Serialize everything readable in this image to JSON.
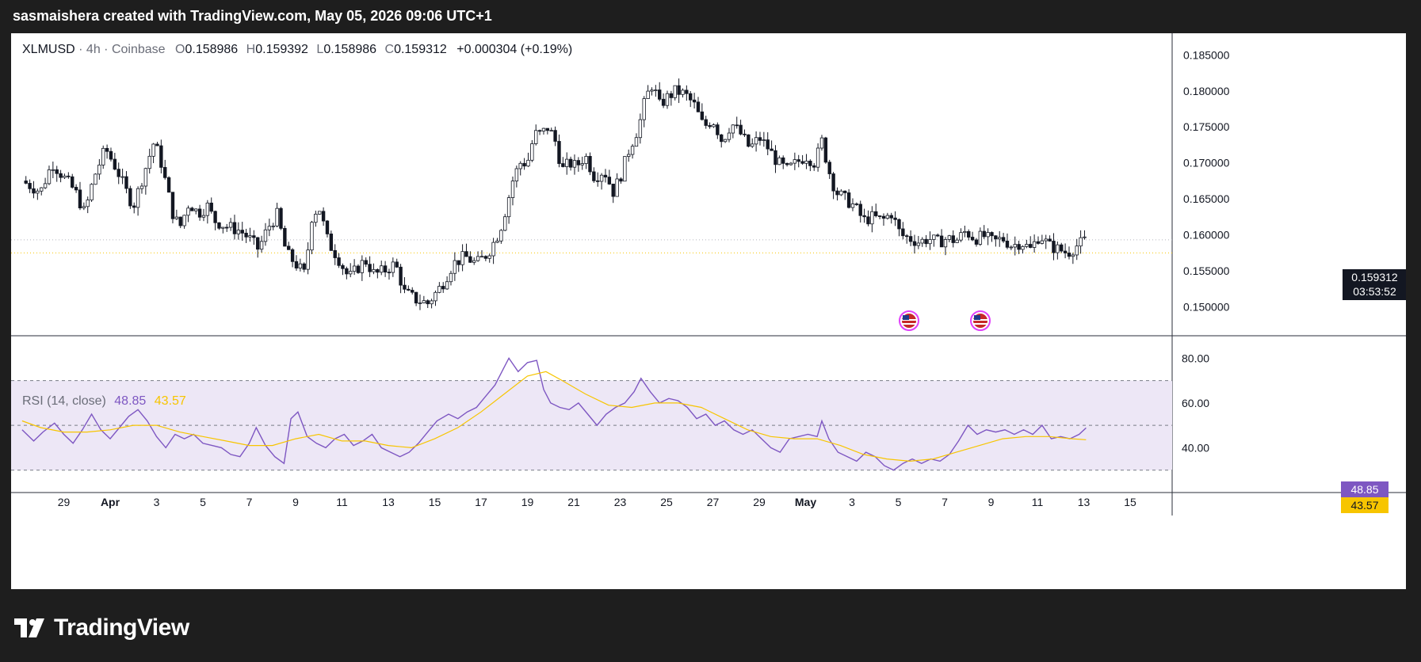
{
  "header": {
    "attribution": "sasmaishera created with TradingView.com, May 05, 2026 09:06 UTC+1"
  },
  "legend": {
    "symbol": "XLMUSD",
    "interval": "4h",
    "exchange": "Coinbase",
    "o_label": "O",
    "o": "0.158986",
    "h_label": "H",
    "h": "0.159392",
    "l_label": "L",
    "l": "0.158986",
    "c_label": "C",
    "c": "0.159312",
    "change": "+0.000304 (+0.19%)"
  },
  "price_tag": {
    "price": "0.159312",
    "countdown": "03:53:52"
  },
  "rsi_legend": {
    "label": "RSI (14, close)",
    "rsi": "48.85",
    "ma": "43.57"
  },
  "brand": {
    "name": "TradingView"
  },
  "colors": {
    "up": "#131722",
    "down": "#131722",
    "rsi": "#7e57c2",
    "rsi_ma": "#f7c500",
    "band": "#ede7f6"
  },
  "chart_data": [
    {
      "type": "candlestick",
      "ylim": [
        0.146,
        0.188
      ],
      "y_ticks": [
        "0.185000",
        "0.180000",
        "0.175000",
        "0.170000",
        "0.165000",
        "0.160000",
        "0.155000",
        "0.150000"
      ],
      "y_tick_values": [
        0.185,
        0.18,
        0.175,
        0.17,
        0.165,
        0.16,
        0.155,
        0.15
      ],
      "x_tick_labels": [
        "29",
        "Apr",
        "3",
        "5",
        "7",
        "9",
        "11",
        "13",
        "15",
        "17",
        "19",
        "21",
        "23",
        "25",
        "27",
        "29",
        "May",
        "3",
        "5",
        "7",
        "9",
        "11",
        "13",
        "15"
      ],
      "x_tick_days": [
        -2,
        0,
        2,
        4,
        6,
        8,
        10,
        12,
        14,
        16,
        18,
        20,
        22,
        24,
        26,
        28,
        30,
        32,
        34,
        36,
        38,
        40,
        42,
        44
      ],
      "last_price": 0.159312,
      "close_path": [
        [
          -3.8,
          0.1675
        ],
        [
          -3.0,
          0.166
        ],
        [
          -2.5,
          0.17
        ],
        [
          -2.0,
          0.168
        ],
        [
          -1.5,
          0.166
        ],
        [
          -1.1,
          0.163
        ],
        [
          -0.7,
          0.168
        ],
        [
          -0.2,
          0.172
        ],
        [
          0.3,
          0.169
        ],
        [
          0.7,
          0.166
        ],
        [
          1.0,
          0.164
        ],
        [
          1.5,
          0.169
        ],
        [
          1.9,
          0.173
        ],
        [
          2.2,
          0.17
        ],
        [
          2.7,
          0.163
        ],
        [
          3.0,
          0.161
        ],
        [
          3.4,
          0.1645
        ],
        [
          3.8,
          0.163
        ],
        [
          4.2,
          0.164
        ],
        [
          4.5,
          0.162
        ],
        [
          5.0,
          0.1612
        ],
        [
          5.6,
          0.1606
        ],
        [
          6.0,
          0.1595
        ],
        [
          6.4,
          0.158
        ],
        [
          6.8,
          0.161
        ],
        [
          7.2,
          0.1628
        ],
        [
          7.6,
          0.1575
        ],
        [
          8.0,
          0.156
        ],
        [
          8.4,
          0.1545
        ],
        [
          8.7,
          0.1625
        ],
        [
          9.0,
          0.164
        ],
        [
          9.4,
          0.159
        ],
        [
          9.8,
          0.157
        ],
        [
          10.3,
          0.154
        ],
        [
          10.7,
          0.1555
        ],
        [
          11.0,
          0.1565
        ],
        [
          11.4,
          0.1545
        ],
        [
          11.8,
          0.155
        ],
        [
          12.3,
          0.156
        ],
        [
          12.7,
          0.152
        ],
        [
          13.2,
          0.151
        ],
        [
          13.7,
          0.1505
        ],
        [
          14.3,
          0.153
        ],
        [
          14.8,
          0.156
        ],
        [
          15.3,
          0.157
        ],
        [
          15.8,
          0.156
        ],
        [
          16.3,
          0.1575
        ],
        [
          16.8,
          0.1605
        ],
        [
          17.1,
          0.164
        ],
        [
          17.4,
          0.168
        ],
        [
          17.7,
          0.17
        ],
        [
          18.0,
          0.17
        ],
        [
          18.3,
          0.174
        ],
        [
          18.6,
          0.174
        ],
        [
          18.9,
          0.175
        ],
        [
          19.2,
          0.173
        ],
        [
          19.5,
          0.169
        ],
        [
          19.8,
          0.17
        ],
        [
          20.1,
          0.1695
        ],
        [
          20.5,
          0.171
        ],
        [
          20.9,
          0.168
        ],
        [
          21.3,
          0.169
        ],
        [
          21.7,
          0.166
        ],
        [
          22.0,
          0.168
        ],
        [
          22.4,
          0.172
        ],
        [
          22.8,
          0.175
        ],
        [
          23.1,
          0.179
        ],
        [
          23.4,
          0.181
        ],
        [
          23.7,
          0.178
        ],
        [
          24.0,
          0.179
        ],
        [
          24.4,
          0.18
        ],
        [
          24.8,
          0.1795
        ],
        [
          25.2,
          0.178
        ],
        [
          25.6,
          0.175
        ],
        [
          26.0,
          0.176
        ],
        [
          26.4,
          0.173
        ],
        [
          26.8,
          0.1755
        ],
        [
          27.2,
          0.174
        ],
        [
          27.6,
          0.172
        ],
        [
          28.0,
          0.1735
        ],
        [
          28.4,
          0.172
        ],
        [
          28.8,
          0.17
        ],
        [
          29.2,
          0.169
        ],
        [
          29.6,
          0.17
        ],
        [
          30.0,
          0.171
        ],
        [
          30.4,
          0.17
        ],
        [
          30.7,
          0.173
        ],
        [
          31.0,
          0.169
        ],
        [
          31.3,
          0.166
        ],
        [
          31.7,
          0.165
        ],
        [
          32.1,
          0.164
        ],
        [
          32.5,
          0.162
        ],
        [
          32.9,
          0.1625
        ],
        [
          33.3,
          0.162
        ],
        [
          33.7,
          0.163
        ],
        [
          34.1,
          0.16
        ],
        [
          34.5,
          0.1595
        ],
        [
          34.9,
          0.159
        ],
        [
          35.3,
          0.1595
        ],
        [
          35.7,
          0.159
        ],
        [
          36.1,
          0.1595
        ],
        [
          36.5,
          0.1592
        ],
        [
          36.9,
          0.1605
        ],
        [
          37.3,
          0.1595
        ],
        [
          37.7,
          0.1598
        ],
        [
          38.1,
          0.159
        ],
        [
          38.5,
          0.1595
        ],
        [
          38.9,
          0.1585
        ],
        [
          39.3,
          0.159
        ],
        [
          39.7,
          0.158
        ],
        [
          40.1,
          0.16
        ],
        [
          40.5,
          0.1585
        ],
        [
          40.9,
          0.158
        ],
        [
          41.3,
          0.1575
        ],
        [
          41.7,
          0.1585
        ],
        [
          42.1,
          0.1593
        ]
      ]
    },
    {
      "type": "line",
      "title": "RSI (14, close)",
      "ylim": [
        20,
        90
      ],
      "y_ticks": [
        "80.00",
        "60.00",
        "40.00"
      ],
      "y_tick_values": [
        80,
        60,
        40
      ],
      "bands": [
        70,
        50,
        30
      ],
      "series": [
        {
          "name": "RSI",
          "color": "#7e57c2",
          "current": 48.85,
          "values": [
            [
              -3.8,
              48
            ],
            [
              -3.3,
              43
            ],
            [
              -2.9,
              47
            ],
            [
              -2.4,
              51
            ],
            [
              -2.0,
              46
            ],
            [
              -1.6,
              42
            ],
            [
              -1.2,
              48
            ],
            [
              -0.8,
              55
            ],
            [
              -0.4,
              48
            ],
            [
              0.0,
              44
            ],
            [
              0.4,
              49
            ],
            [
              0.8,
              54
            ],
            [
              1.2,
              57
            ],
            [
              1.6,
              52
            ],
            [
              2.0,
              45
            ],
            [
              2.4,
              40
            ],
            [
              2.8,
              46
            ],
            [
              3.2,
              44
            ],
            [
              3.6,
              46
            ],
            [
              4.0,
              42
            ],
            [
              4.4,
              41
            ],
            [
              4.8,
              40
            ],
            [
              5.2,
              37
            ],
            [
              5.6,
              36
            ],
            [
              6.0,
              42
            ],
            [
              6.3,
              49
            ],
            [
              6.7,
              41
            ],
            [
              7.1,
              36
            ],
            [
              7.5,
              33
            ],
            [
              7.8,
              53
            ],
            [
              8.1,
              56
            ],
            [
              8.5,
              45
            ],
            [
              8.9,
              42
            ],
            [
              9.3,
              40
            ],
            [
              9.7,
              44
            ],
            [
              10.1,
              46
            ],
            [
              10.5,
              41
            ],
            [
              10.9,
              43
            ],
            [
              11.3,
              46
            ],
            [
              11.7,
              40
            ],
            [
              12.1,
              38
            ],
            [
              12.5,
              36
            ],
            [
              12.9,
              38
            ],
            [
              13.3,
              42
            ],
            [
              13.7,
              47
            ],
            [
              14.1,
              52
            ],
            [
              14.6,
              55
            ],
            [
              15.0,
              53
            ],
            [
              15.4,
              56
            ],
            [
              15.8,
              58
            ],
            [
              16.2,
              63
            ],
            [
              16.6,
              68
            ],
            [
              16.9,
              74
            ],
            [
              17.2,
              80
            ],
            [
              17.6,
              74
            ],
            [
              18.0,
              78
            ],
            [
              18.4,
              79
            ],
            [
              18.7,
              66
            ],
            [
              19.0,
              60
            ],
            [
              19.4,
              58
            ],
            [
              19.8,
              57
            ],
            [
              20.2,
              60
            ],
            [
              20.6,
              55
            ],
            [
              21.0,
              50
            ],
            [
              21.4,
              55
            ],
            [
              21.8,
              58
            ],
            [
              22.2,
              60
            ],
            [
              22.6,
              65
            ],
            [
              22.9,
              71
            ],
            [
              23.3,
              65
            ],
            [
              23.7,
              60
            ],
            [
              24.1,
              62
            ],
            [
              24.5,
              61
            ],
            [
              24.9,
              58
            ],
            [
              25.3,
              53
            ],
            [
              25.7,
              55
            ],
            [
              26.1,
              50
            ],
            [
              26.5,
              52
            ],
            [
              26.9,
              48
            ],
            [
              27.3,
              46
            ],
            [
              27.7,
              48
            ],
            [
              28.1,
              44
            ],
            [
              28.5,
              40
            ],
            [
              28.9,
              38
            ],
            [
              29.3,
              44
            ],
            [
              29.7,
              45
            ],
            [
              30.1,
              46
            ],
            [
              30.5,
              45
            ],
            [
              30.7,
              52
            ],
            [
              31.0,
              44
            ],
            [
              31.4,
              38
            ],
            [
              31.8,
              36
            ],
            [
              32.2,
              34
            ],
            [
              32.6,
              38
            ],
            [
              33.0,
              36
            ],
            [
              33.4,
              32
            ],
            [
              33.8,
              30
            ],
            [
              34.2,
              33
            ],
            [
              34.6,
              35
            ],
            [
              35.0,
              33
            ],
            [
              35.4,
              35
            ],
            [
              35.8,
              34
            ],
            [
              36.2,
              37
            ],
            [
              36.6,
              43
            ],
            [
              37.0,
              50
            ],
            [
              37.4,
              46
            ],
            [
              37.8,
              48
            ],
            [
              38.2,
              47
            ],
            [
              38.6,
              48
            ],
            [
              39.0,
              46
            ],
            [
              39.4,
              48
            ],
            [
              39.8,
              46
            ],
            [
              40.2,
              50
            ],
            [
              40.6,
              44
            ],
            [
              41.0,
              45
            ],
            [
              41.4,
              44
            ],
            [
              41.8,
              46
            ],
            [
              42.1,
              48.85
            ]
          ]
        },
        {
          "name": "RSI-based MA",
          "color": "#f7c500",
          "current": 43.57,
          "values": [
            [
              -3.8,
              52
            ],
            [
              -3.0,
              49
            ],
            [
              -2.0,
              47
            ],
            [
              -1.0,
              47
            ],
            [
              0.0,
              48
            ],
            [
              1.0,
              50
            ],
            [
              2.0,
              50
            ],
            [
              3.0,
              47
            ],
            [
              4.0,
              45
            ],
            [
              5.0,
              43
            ],
            [
              6.0,
              41
            ],
            [
              7.0,
              41
            ],
            [
              8.0,
              44
            ],
            [
              9.0,
              46
            ],
            [
              10.0,
              43
            ],
            [
              11.0,
              43
            ],
            [
              12.0,
              41
            ],
            [
              13.0,
              40
            ],
            [
              14.0,
              44
            ],
            [
              15.0,
              49
            ],
            [
              16.0,
              56
            ],
            [
              17.0,
              64
            ],
            [
              18.0,
              72
            ],
            [
              18.8,
              74
            ],
            [
              19.5,
              70
            ],
            [
              20.5,
              64
            ],
            [
              21.5,
              59
            ],
            [
              22.5,
              58
            ],
            [
              23.5,
              60
            ],
            [
              24.5,
              60
            ],
            [
              25.5,
              58
            ],
            [
              26.5,
              53
            ],
            [
              27.5,
              48
            ],
            [
              28.5,
              45
            ],
            [
              29.5,
              44
            ],
            [
              30.5,
              44
            ],
            [
              31.5,
              41
            ],
            [
              32.5,
              37
            ],
            [
              33.5,
              35
            ],
            [
              34.5,
              34
            ],
            [
              35.5,
              35
            ],
            [
              36.5,
              38
            ],
            [
              37.5,
              41
            ],
            [
              38.5,
              44
            ],
            [
              39.5,
              45
            ],
            [
              40.5,
              45
            ],
            [
              41.5,
              44
            ],
            [
              42.1,
              43.57
            ]
          ]
        }
      ]
    }
  ]
}
